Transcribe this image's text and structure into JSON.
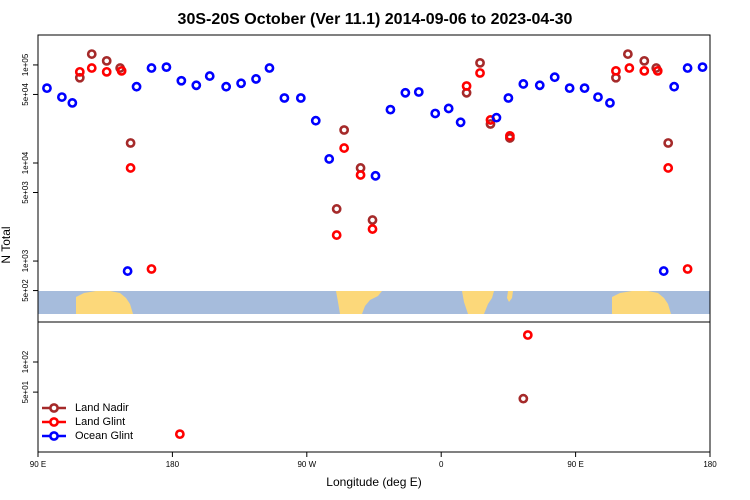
{
  "chart_data": [
    {
      "type": "scatter",
      "title": "30S-20S October (Ver 11.1)   2014-09-06 to 2023-04-30",
      "y_label": "N Total",
      "log": true,
      "xlim": [
        90,
        540
      ],
      "ylim": [
        239,
        202000
      ],
      "yticks": [
        {
          "value": 500,
          "label": "5e+02"
        },
        {
          "value": 1000,
          "label": "1e+03"
        },
        {
          "value": 5000,
          "label": "5e+03"
        },
        {
          "value": 10000,
          "label": "1e+04"
        },
        {
          "value": 50000,
          "label": "5e+04"
        },
        {
          "value": 100000,
          "label": "1e+05"
        }
      ],
      "series": [
        {
          "color": "#a52a2a",
          "x": [
            118,
            126,
            136,
            145,
            152,
            290,
            295,
            306,
            314,
            377,
            386,
            393,
            406,
            477,
            485,
            496,
            504,
            512
          ],
          "values": [
            74000,
            129000,
            110000,
            93000,
            16000,
            3400,
            21700,
            8900,
            2620,
            52000,
            105000,
            25000,
            18000,
            74000,
            129000,
            110000,
            93000,
            16000
          ]
        },
        {
          "color": "#ff0000",
          "x": [
            118,
            126,
            136,
            146,
            152,
            166,
            290,
            295,
            306,
            314,
            377,
            386,
            393,
            406,
            477,
            486,
            496,
            505,
            512,
            525
          ],
          "values": [
            85000,
            93000,
            85000,
            87000,
            8900,
            830,
            1840,
            14200,
            7550,
            2120,
            61000,
            82800,
            27500,
            18900,
            87000,
            93000,
            87000,
            87000,
            8900,
            830
          ]
        },
        {
          "color": "#0000ff",
          "x": [
            96,
            106,
            113,
            150,
            156,
            166,
            176,
            186,
            196,
            205,
            216,
            226,
            236,
            245,
            255,
            266,
            276,
            285,
            316,
            326,
            336,
            345,
            356,
            365,
            373,
            397,
            405,
            415,
            426,
            436,
            446,
            456,
            465,
            473,
            509,
            516,
            525,
            535
          ],
          "values": [
            58000,
            47000,
            41000,
            790,
            60000,
            93000,
            95000,
            69000,
            62000,
            77000,
            60000,
            65000,
            72000,
            93000,
            46000,
            46000,
            27000,
            11000,
            7400,
            35000,
            52000,
            53000,
            32000,
            36000,
            26000,
            29000,
            46000,
            64000,
            62000,
            75000,
            58000,
            58000,
            47000,
            41000,
            790,
            60000,
            93000,
            95000
          ]
        }
      ]
    },
    {
      "type": "scatter",
      "x_label": "Longitude (deg E)",
      "log": true,
      "xlim": [
        90,
        540
      ],
      "ylim": [
        12.6,
        251
      ],
      "xticks": [
        {
          "value": 90,
          "label": "90 E"
        },
        {
          "value": 180,
          "label": "180"
        },
        {
          "value": 270,
          "label": "90 W"
        },
        {
          "value": 360,
          "label": "0"
        },
        {
          "value": 450,
          "label": "90 E"
        },
        {
          "value": 540,
          "label": "180"
        }
      ],
      "yticks": [
        {
          "value": 50,
          "label": "5e+01"
        },
        {
          "value": 100,
          "label": "1e+02"
        }
      ],
      "legend": "lower left",
      "series": [
        {
          "name": "Land Nadir",
          "color": "#a52a2a",
          "x": [
            415
          ],
          "values": [
            43
          ]
        },
        {
          "name": "Land Glint",
          "color": "#ff0000",
          "x": [
            185,
            418
          ],
          "values": [
            19,
            186
          ]
        },
        {
          "name": "Ocean Glint",
          "color": "#0000ff",
          "x": [],
          "values": []
        }
      ]
    }
  ]
}
